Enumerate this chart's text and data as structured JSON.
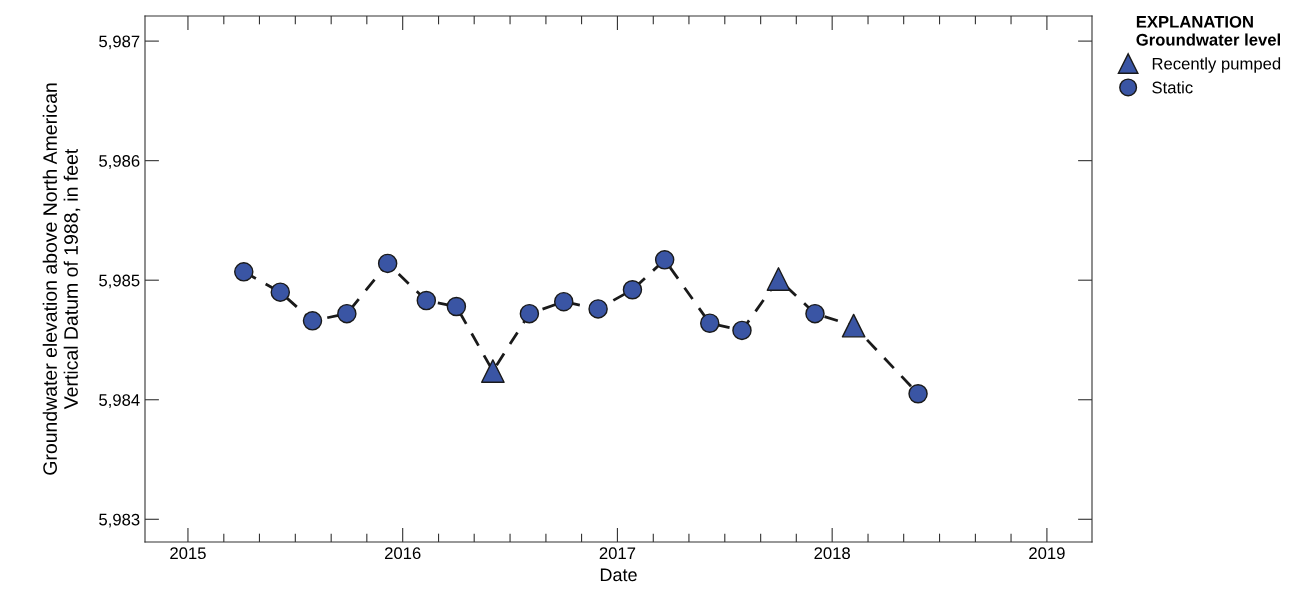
{
  "chart_data": {
    "type": "scatter",
    "xlabel": "Date",
    "ylabel": "Groundwater elevation above North American\nVertical Datum of 1988, in feet",
    "legend_title": "EXPLANATION\nGroundwater level",
    "legend": "top right",
    "grid": false,
    "xlim": [
      2014.8,
      2019.21
    ],
    "ylim": [
      5982.81,
      5987.21
    ],
    "xticks": [
      2015,
      {
        "value": 2015.167,
        "label": null
      },
      {
        "value": 2015.333,
        "label": null
      },
      {
        "value": 2015.5,
        "label": null
      },
      {
        "value": 2015.667,
        "label": null
      },
      {
        "value": 2015.833,
        "label": null
      },
      2016,
      {
        "value": 2016.167,
        "label": null
      },
      {
        "value": 2016.333,
        "label": null
      },
      {
        "value": 2016.5,
        "label": null
      },
      {
        "value": 2016.667,
        "label": null
      },
      {
        "value": 2016.833,
        "label": null
      },
      2017,
      {
        "value": 2017.167,
        "label": null
      },
      {
        "value": 2017.333,
        "label": null
      },
      {
        "value": 2017.5,
        "label": null
      },
      {
        "value": 2017.667,
        "label": null
      },
      {
        "value": 2017.833,
        "label": null
      },
      2018,
      {
        "value": 2018.167,
        "label": null
      },
      {
        "value": 2018.333,
        "label": null
      },
      {
        "value": 2018.5,
        "label": null
      },
      {
        "value": 2018.667,
        "label": null
      },
      {
        "value": 2018.833,
        "label": null
      },
      2019
    ],
    "yticks": [
      {
        "value": 5983,
        "label": "5,983"
      },
      {
        "value": 5984,
        "label": "5,984"
      },
      {
        "value": 5985,
        "label": "5,985"
      },
      {
        "value": 5986,
        "label": "5,986"
      },
      {
        "value": 5987,
        "label": "5,987"
      }
    ],
    "series": [
      {
        "type": "line",
        "color": "#1a1a1a",
        "line_style": "dashed",
        "marker": "none",
        "x": [
          2015.26,
          2015.43,
          2015.58,
          2015.74,
          2015.93,
          2016.11,
          2016.25,
          2016.42,
          2016.59,
          2016.75,
          2016.91,
          2017.07,
          2017.22,
          2017.43,
          2017.58,
          2017.75,
          2017.92,
          2018.1,
          2018.4
        ],
        "values": [
          5985.07,
          5984.9,
          5984.66,
          5984.72,
          5985.14,
          5984.83,
          5984.78,
          5984.24,
          5984.72,
          5984.82,
          5984.76,
          5984.92,
          5985.17,
          5984.64,
          5984.58,
          5985.01,
          5984.72,
          5984.62,
          5984.05
        ]
      },
      {
        "name": "Recently pumped",
        "color": "#3a55a4",
        "marker": "triangle",
        "x": [
          2016.42,
          2017.75,
          2018.1
        ],
        "values": [
          5984.24,
          5985.01,
          5984.62
        ]
      },
      {
        "name": "Static",
        "color": "#3a55a4",
        "marker": "circle",
        "x": [
          2015.26,
          2015.43,
          2015.58,
          2015.74,
          2015.93,
          2016.11,
          2016.25,
          2016.59,
          2016.75,
          2016.91,
          2017.07,
          2017.22,
          2017.43,
          2017.58,
          2017.92,
          2018.4
        ],
        "values": [
          5985.07,
          5984.9,
          5984.66,
          5984.72,
          5985.14,
          5984.83,
          5984.78,
          5984.72,
          5984.82,
          5984.76,
          5984.92,
          5985.17,
          5984.64,
          5984.58,
          5984.72,
          5984.05
        ]
      }
    ]
  }
}
